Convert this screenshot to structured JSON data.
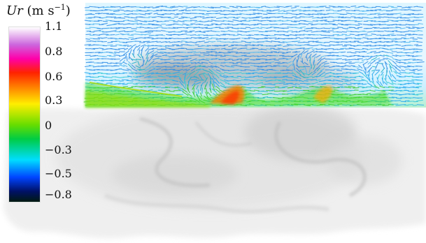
{
  "colorbar": {
    "variable": "Ur",
    "units_open": "(m s",
    "units_exponent": "−1",
    "units_close": ")",
    "ticks": [
      "1.1",
      "0.8",
      "0.6",
      "0.3",
      "0",
      "−0.3",
      "−0.5",
      "−0.8"
    ],
    "tick_values": [
      1.1,
      0.8,
      0.6,
      0.3,
      0,
      -0.3,
      -0.5,
      -0.8
    ],
    "range": [
      -0.8,
      1.1
    ],
    "colors": {
      "top": "#ffffff",
      "violet": "#cc66dd",
      "magenta": "#ff00aa",
      "red": "#ff2200",
      "orange": "#ff8800",
      "yellow": "#ffee00",
      "green": "#66dd00",
      "bright_green": "#00cc44",
      "cyan": "#00ddff",
      "blue": "#0044ff",
      "navy": "#001166",
      "bottom": "#001a10"
    }
  }
}
